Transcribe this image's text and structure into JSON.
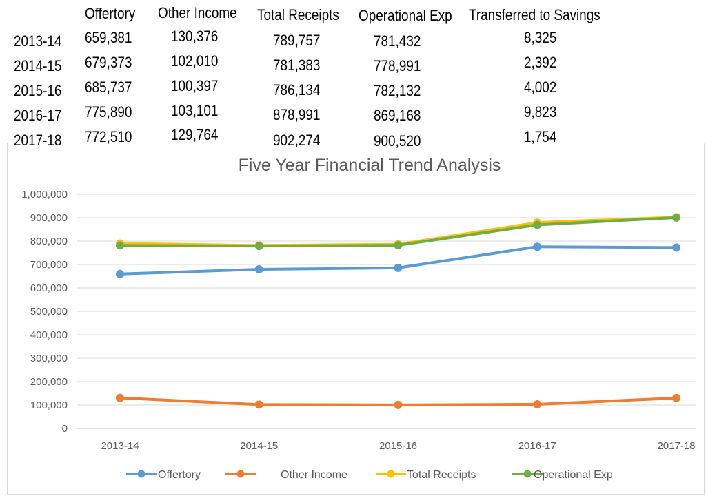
{
  "table": {
    "headers": [
      "Offertory",
      "Other Income",
      "Total Receipts",
      "Operational Exp",
      "Transferred to Savings"
    ],
    "rows": [
      {
        "year": "2013-14",
        "values": [
          "659,381",
          "130,376",
          "789,757",
          "781,432",
          "8,325"
        ]
      },
      {
        "year": "2014-15",
        "values": [
          "679,373",
          "102,010",
          "781,383",
          "778,991",
          "2,392"
        ]
      },
      {
        "year": "2015-16",
        "values": [
          "685,737",
          "100,397",
          "786,134",
          "782,132",
          "4,002"
        ]
      },
      {
        "year": "2016-17",
        "values": [
          "775,890",
          "103,101",
          "878,991",
          "869,168",
          "9,823"
        ]
      },
      {
        "year": "2017-18",
        "values": [
          "772,510",
          "129,764",
          "902,274",
          "900,520",
          "1,754"
        ]
      }
    ]
  },
  "chart_data": {
    "type": "line",
    "title": "Five Year Financial Trend Analysis",
    "categories": [
      "2013-14",
      "2014-15",
      "2015-16",
      "2016-17",
      "2017-18"
    ],
    "ylim": [
      0,
      1000000
    ],
    "yticks": [
      0,
      100000,
      200000,
      300000,
      400000,
      500000,
      600000,
      700000,
      800000,
      900000,
      1000000
    ],
    "ytick_labels": [
      "0",
      "100,000",
      "200,000",
      "300,000",
      "400,000",
      "500,000",
      "600,000",
      "700,000",
      "800,000",
      "900,000",
      "1,000,000"
    ],
    "grid": true,
    "legend_position": "bottom",
    "series": [
      {
        "name": "Offertory",
        "color": "#5B9BD5",
        "values": [
          659381,
          679373,
          685737,
          775890,
          772510
        ]
      },
      {
        "name": "Other Income",
        "color": "#ED7D31",
        "values": [
          130376,
          102010,
          100397,
          103101,
          129764
        ]
      },
      {
        "name": "Total Receipts",
        "color": "#FFC000",
        "values": [
          789757,
          781383,
          786134,
          878991,
          902274
        ]
      },
      {
        "name": "Operational Exp",
        "color": "#70AD47",
        "values": [
          781432,
          778991,
          782132,
          869168,
          900520
        ]
      }
    ]
  }
}
